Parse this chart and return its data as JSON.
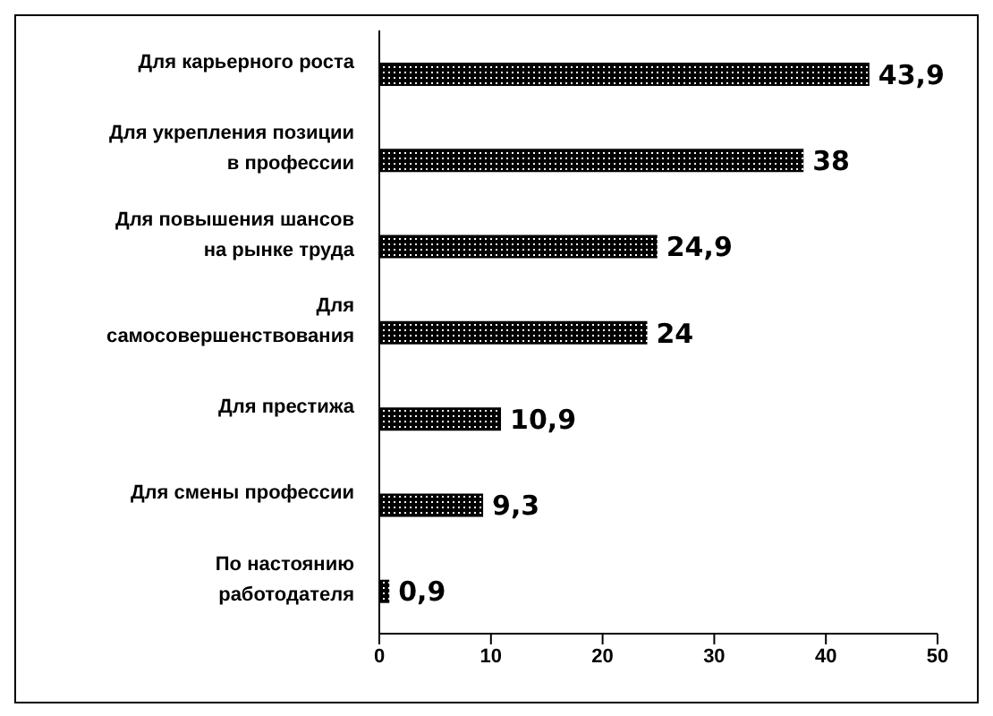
{
  "chart_data": {
    "type": "bar",
    "orientation": "horizontal",
    "categories": [
      "Для карьерного роста",
      "Для укрепления позиции в профессии",
      "Для повышения шансов на рынке труда",
      "Для самосовершенствования",
      "Для престижа",
      "Для смены профессии",
      "По настоянию работодателя"
    ],
    "values": [
      43.9,
      38,
      24.9,
      24,
      10.9,
      9.3,
      0.9
    ],
    "value_labels": [
      "43,9",
      "38",
      "24,9",
      "24",
      "10,9",
      "9,3",
      "0,9"
    ],
    "color": "#000000",
    "xlim": [
      0,
      50
    ],
    "xticks": [
      0,
      10,
      20,
      30,
      40,
      50
    ],
    "grid": false
  }
}
